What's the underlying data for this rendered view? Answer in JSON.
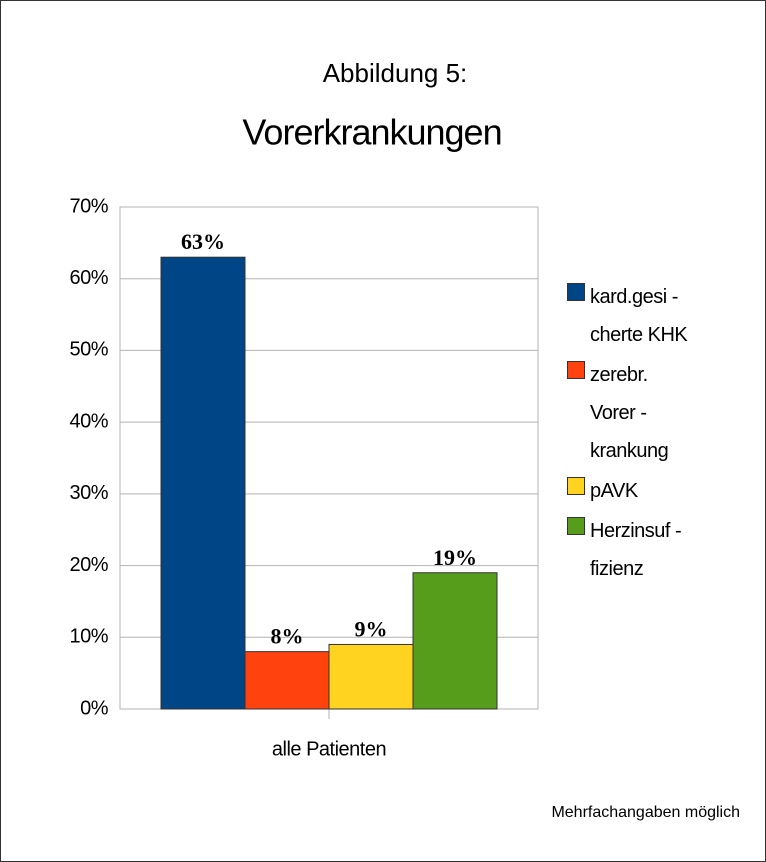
{
  "chart_data": {
    "type": "bar",
    "title": "Abbildung 5:",
    "subtitle": "Vorerkrankungen",
    "categories": [
      "alle Patienten"
    ],
    "series": [
      {
        "name": "kard.gesi -\ncherte KHK",
        "color": "#004586",
        "values": [
          63
        ],
        "value_labels": [
          "63%"
        ]
      },
      {
        "name": "zerebr.\nVorer -\nkrankung",
        "color": "#ff420e",
        "values": [
          8
        ],
        "value_labels": [
          "8%"
        ]
      },
      {
        "name": "pAVK",
        "color": "#ffd320",
        "values": [
          9
        ],
        "value_labels": [
          "9%"
        ]
      },
      {
        "name": "Herzinsuf -\nfizienz",
        "color": "#579d1c",
        "values": [
          19
        ],
        "value_labels": [
          "19%"
        ]
      }
    ],
    "ylim": [
      0,
      70
    ],
    "yticks": [
      {
        "value": 0,
        "label": "0%"
      },
      {
        "value": 10,
        "label": "10%"
      },
      {
        "value": 20,
        "label": "20%"
      },
      {
        "value": 30,
        "label": "30%"
      },
      {
        "value": 40,
        "label": "40%"
      },
      {
        "value": 50,
        "label": "50%"
      },
      {
        "value": 60,
        "label": "60%"
      },
      {
        "value": 70,
        "label": "70%"
      }
    ],
    "grid": true,
    "legend": "right",
    "annotations": [
      "Mehrfachangaben möglich"
    ]
  }
}
